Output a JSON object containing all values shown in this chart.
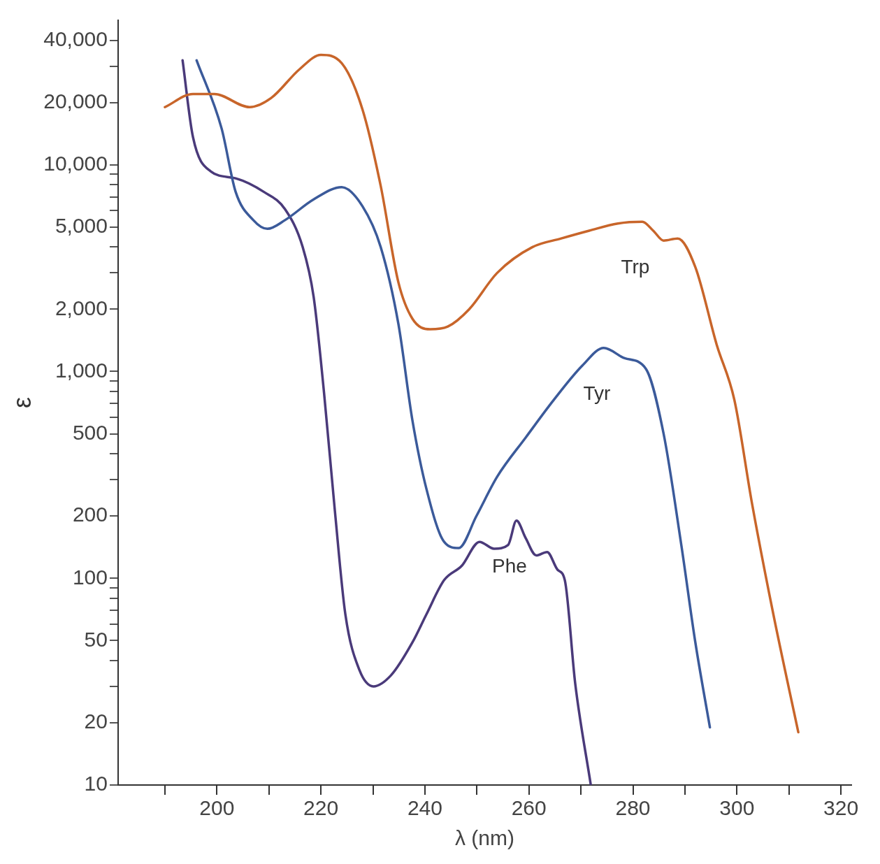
{
  "chart_data": {
    "type": "line",
    "xlabel": "λ (nm)",
    "ylabel": "ε",
    "log": "y",
    "grid": false,
    "legend": false,
    "marker": "none",
    "line_style": "solid",
    "xlim": [
      181,
      322
    ],
    "xticks": [
      {
        "value": 190,
        "label": null
      },
      200,
      {
        "value": 210,
        "label": null
      },
      220,
      {
        "value": 230,
        "label": null
      },
      240,
      {
        "value": 250,
        "label": null
      },
      260,
      {
        "value": 270,
        "label": null
      },
      280,
      {
        "value": 290,
        "label": null
      },
      300,
      {
        "value": 310,
        "label": null
      },
      320
    ],
    "ylim": [
      10,
      50000
    ],
    "yticks": [
      10,
      20,
      {
        "value": 30,
        "label": null
      },
      {
        "value": 40,
        "label": null
      },
      50,
      {
        "value": 60,
        "label": null
      },
      {
        "value": 70,
        "label": null
      },
      {
        "value": 80,
        "label": null
      },
      {
        "value": 90,
        "label": null
      },
      100,
      200,
      {
        "value": 300,
        "label": null
      },
      {
        "value": 400,
        "label": null
      },
      500,
      {
        "value": 600,
        "label": null
      },
      {
        "value": 700,
        "label": null
      },
      {
        "value": 800,
        "label": null
      },
      {
        "value": 900,
        "label": null
      },
      {
        "value": 1000,
        "label": "1,000"
      },
      {
        "value": 2000,
        "label": "2,000"
      },
      {
        "value": 3000,
        "label": null
      },
      {
        "value": 4000,
        "label": null
      },
      {
        "value": 5000,
        "label": "5,000"
      },
      {
        "value": 6000,
        "label": null
      },
      {
        "value": 7000,
        "label": null
      },
      {
        "value": 8000,
        "label": null
      },
      {
        "value": 9000,
        "label": null
      },
      {
        "value": 10000,
        "label": "10,000"
      },
      {
        "value": 20000,
        "label": "20,000"
      },
      {
        "value": 30000,
        "label": null
      },
      {
        "value": 40000,
        "label": "40,000"
      }
    ],
    "series": [
      {
        "name": "Trp",
        "color": "#c8652a",
        "x": [
          190,
          195.4,
          199.5,
          206.3,
          210.4,
          215.9,
          220,
          224,
          228,
          231.5,
          234.9,
          237.6,
          241,
          244.4,
          248.5,
          253.9,
          260.7,
          266.2,
          271.6,
          277.1,
          281.8,
          283.9,
          285.9,
          288.6,
          292,
          296.1,
          299.5,
          302.9,
          307,
          311.8
        ],
        "values": [
          19000,
          22000,
          22000,
          19000,
          21000,
          29000,
          34000,
          31000,
          18500,
          7900,
          2700,
          1800,
          1600,
          1650,
          2000,
          3000,
          4000,
          4400,
          4800,
          5200,
          5300,
          4800,
          4300,
          4400,
          3200,
          1350,
          730,
          230,
          67,
          18
        ]
      },
      {
        "name": "Tyr",
        "color": "#3b5a9a",
        "x": [
          196.1,
          200.9,
          203.6,
          207,
          209.7,
          213.1,
          218.6,
          224,
          228,
          231.5,
          234.9,
          237.6,
          240.3,
          243.7,
          246.5,
          249.9,
          253.9,
          259.4,
          264.8,
          270.3,
          274.4,
          278.4,
          282.5,
          285.9,
          289.3,
          292,
          294.8
        ],
        "values": [
          32000,
          15000,
          7400,
          5400,
          4900,
          5400,
          6800,
          7800,
          6300,
          4000,
          1700,
          580,
          270,
          150,
          140,
          200,
          310,
          480,
          730,
          1070,
          1300,
          1160,
          1030,
          500,
          145,
          49,
          19
        ]
      },
      {
        "name": "Phe",
        "color": "#4a3a7a",
        "x": [
          193.4,
          195.4,
          198.8,
          203.6,
          209,
          213.1,
          216.5,
          218.6,
          220.6,
          222.7,
          224.7,
          227.4,
          230.1,
          233.5,
          237.6,
          240.3,
          243.7,
          247.1,
          250.5,
          253.3,
          256,
          257.6,
          259.4,
          261.4,
          263.5,
          265.5,
          266.9,
          268.9,
          271.9
        ],
        "values": [
          32000,
          13600,
          9300,
          8600,
          7400,
          6100,
          4000,
          2300,
          790,
          210,
          67,
          36,
          30,
          34,
          49,
          67,
          98,
          115,
          150,
          139,
          145,
          190,
          156,
          129,
          134,
          110,
          98,
          31,
          10
        ]
      }
    ]
  }
}
